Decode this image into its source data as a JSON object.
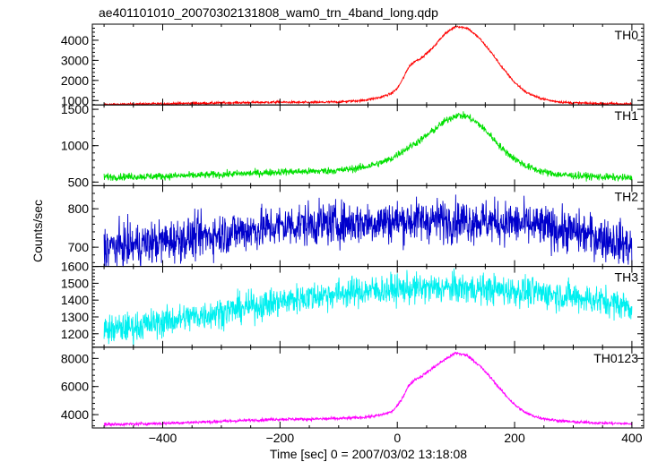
{
  "chart_data": {
    "type": "line",
    "title": "ae401101010_20070302131808_wam0_trn_4band_long.qdp",
    "xlabel": "Time [sec] 0 = 2007/03/02 13:18:08",
    "ylabel": "Counts/sec",
    "xlim": [
      -520,
      420
    ],
    "xticks": [
      -400,
      -200,
      0,
      200,
      400
    ],
    "grid": false,
    "panels": [
      {
        "name": "TH0",
        "color": "#ff0000",
        "ylim": [
          780,
          4800
        ],
        "yticks": [
          1000,
          2000,
          3000,
          4000
        ],
        "x": [
          -500,
          -450,
          -400,
          -350,
          -300,
          -250,
          -200,
          -150,
          -100,
          -60,
          -30,
          -10,
          0,
          10,
          20,
          30,
          40,
          60,
          80,
          100,
          120,
          140,
          160,
          180,
          200,
          220,
          240,
          260,
          280,
          300,
          350,
          400
        ],
        "values": [
          800,
          820,
          840,
          860,
          880,
          900,
          920,
          900,
          930,
          1000,
          1150,
          1350,
          1600,
          2100,
          2700,
          2950,
          3100,
          3600,
          4300,
          4700,
          4600,
          4100,
          3400,
          2600,
          1900,
          1400,
          1150,
          1000,
          920,
          880,
          850,
          830
        ],
        "noise": 30
      },
      {
        "name": "TH1",
        "color": "#00e000",
        "ylim": [
          450,
          1560
        ],
        "yticks": [
          500,
          1000,
          1500
        ],
        "x": [
          -500,
          -450,
          -400,
          -350,
          -300,
          -250,
          -200,
          -150,
          -100,
          -60,
          -30,
          -10,
          0,
          20,
          40,
          60,
          80,
          100,
          120,
          140,
          160,
          180,
          200,
          220,
          240,
          260,
          280,
          300,
          350,
          400
        ],
        "values": [
          570,
          575,
          580,
          590,
          605,
          620,
          640,
          645,
          660,
          700,
          760,
          820,
          880,
          980,
          1080,
          1200,
          1330,
          1420,
          1400,
          1290,
          1130,
          950,
          820,
          720,
          660,
          620,
          600,
          590,
          570,
          555
        ],
        "noise": 25
      },
      {
        "name": "TH2",
        "color": "#0000cc",
        "ylim": [
          650,
          860
        ],
        "yticks": [
          700,
          800
        ],
        "x": [
          -500,
          -450,
          -400,
          -350,
          -300,
          -250,
          -200,
          -150,
          -100,
          -50,
          0,
          50,
          100,
          150,
          200,
          250,
          300,
          350,
          380,
          400
        ],
        "values": [
          700,
          705,
          715,
          725,
          735,
          745,
          755,
          760,
          762,
          765,
          768,
          770,
          770,
          768,
          762,
          752,
          740,
          725,
          712,
          700
        ],
        "noise": 28
      },
      {
        "name": "TH3",
        "color": "#00f0f0",
        "ylim": [
          1120,
          1600
        ],
        "yticks": [
          1200,
          1300,
          1400,
          1500,
          1600
        ],
        "x": [
          -500,
          -450,
          -400,
          -350,
          -300,
          -250,
          -200,
          -150,
          -100,
          -50,
          0,
          50,
          100,
          150,
          200,
          250,
          300,
          350,
          400
        ],
        "values": [
          1220,
          1240,
          1270,
          1300,
          1330,
          1360,
          1390,
          1420,
          1440,
          1455,
          1465,
          1470,
          1470,
          1465,
          1455,
          1440,
          1420,
          1395,
          1360
        ],
        "noise": 45
      },
      {
        "name": "TH0123",
        "color": "#ff00ff",
        "ylim": [
          3050,
          8800
        ],
        "yticks": [
          4000,
          6000,
          8000
        ],
        "x": [
          -500,
          -450,
          -400,
          -350,
          -300,
          -250,
          -200,
          -150,
          -100,
          -60,
          -30,
          -10,
          0,
          10,
          20,
          30,
          40,
          60,
          80,
          100,
          120,
          140,
          160,
          180,
          200,
          220,
          240,
          260,
          280,
          300,
          350,
          400
        ],
        "values": [
          3300,
          3330,
          3380,
          3450,
          3520,
          3600,
          3680,
          3680,
          3720,
          3800,
          3950,
          4200,
          4600,
          5300,
          6100,
          6500,
          6700,
          7300,
          7900,
          8400,
          8200,
          7500,
          6600,
          5600,
          4700,
          4100,
          3800,
          3650,
          3550,
          3480,
          3400,
          3350
        ],
        "noise": 55
      }
    ]
  }
}
